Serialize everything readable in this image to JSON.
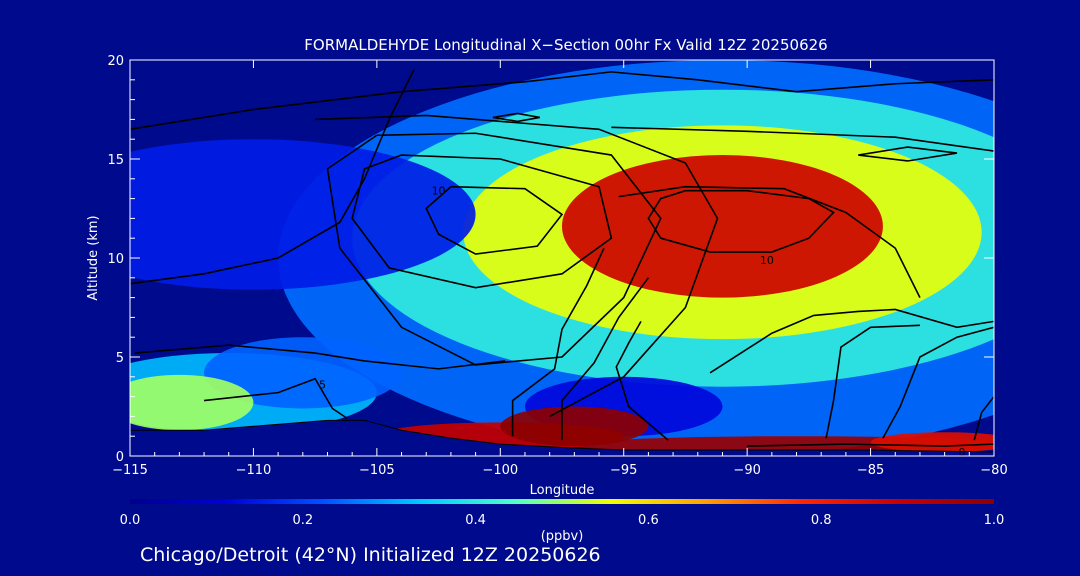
{
  "chart_data": {
    "type": "heatmap",
    "title": "FORMALDEHYDE Longitudinal X−Section 00hr  Fx Valid 12Z 20250626",
    "xlabel": "Longitude",
    "ylabel": "Altitude (km)",
    "xlim": [
      -115,
      -80
    ],
    "ylim": [
      0,
      20
    ],
    "x_ticks": [
      -115,
      -110,
      -105,
      -100,
      -95,
      -90,
      -85,
      -80
    ],
    "x_tick_labels": [
      "−115",
      "−110",
      "−105",
      "−100",
      "−95",
      "−90",
      "−85",
      "−80"
    ],
    "y_ticks": [
      0,
      5,
      10,
      15,
      20
    ],
    "y_tick_labels": [
      "0",
      "5",
      "10",
      "15",
      "20"
    ],
    "colorbar": {
      "label": "(ppbv)",
      "min": 0.0,
      "max": 1.0,
      "ticks": [
        0.0,
        0.2,
        0.4,
        0.6,
        0.8,
        1.0
      ],
      "tick_labels": [
        "0.0",
        "0.2",
        "0.4",
        "0.6",
        "0.8",
        "1.0"
      ],
      "colors": [
        "#00008c",
        "#0000d8",
        "#0050ff",
        "#00c8ff",
        "#50ffc8",
        "#f0ff00",
        "#ffa000",
        "#ff2800",
        "#c80000",
        "#8c0000"
      ]
    },
    "terrain_km": [
      [
        -115,
        1.3
      ],
      [
        -112,
        1.3
      ],
      [
        -110,
        1.5
      ],
      [
        -107,
        1.8
      ],
      [
        -105.5,
        1.8
      ],
      [
        -104,
        1.3
      ],
      [
        -102,
        0.9
      ],
      [
        -100,
        0.6
      ],
      [
        -97,
        0.4
      ],
      [
        -95,
        0.3
      ],
      [
        -90,
        0.3
      ],
      [
        -85,
        0.3
      ],
      [
        -80,
        0.2
      ]
    ],
    "concentration_blobs": [
      {
        "lon": -91,
        "alt": 11.6,
        "rx_deg": 6.5,
        "ry_km": 3.6,
        "ppbv": 0.88
      },
      {
        "lon": -91,
        "alt": 11.3,
        "rx_deg": 10.5,
        "ry_km": 5.4,
        "ppbv": 0.55
      },
      {
        "lon": -91,
        "alt": 11.0,
        "rx_deg": 15.0,
        "ry_km": 7.5,
        "ppbv": 0.4
      },
      {
        "lon": -91,
        "alt": 10.0,
        "rx_deg": 18.0,
        "ry_km": 10.0,
        "ppbv": 0.25
      },
      {
        "lon": -97,
        "alt": 1.5,
        "rx_deg": 3.0,
        "ry_km": 1.0,
        "ppbv": 1.0
      },
      {
        "lon": -100,
        "alt": 1.0,
        "rx_deg": 5.0,
        "ry_km": 0.7,
        "ppbv": 0.9
      },
      {
        "lon": -88,
        "alt": 0.55,
        "rx_deg": 9.0,
        "ry_km": 0.45,
        "ppbv": 0.98
      },
      {
        "lon": -82,
        "alt": 0.7,
        "rx_deg": 3.0,
        "ry_km": 0.5,
        "ppbv": 0.85
      },
      {
        "lon": -113,
        "alt": 2.7,
        "rx_deg": 3.0,
        "ry_km": 1.4,
        "ppbv": 0.5
      },
      {
        "lon": -111,
        "alt": 3.2,
        "rx_deg": 6.0,
        "ry_km": 2.0,
        "ppbv": 0.32
      },
      {
        "lon": -108,
        "alt": 4.2,
        "rx_deg": 4.0,
        "ry_km": 1.8,
        "ppbv": 0.24
      },
      {
        "lon": -110,
        "alt": 12.2,
        "rx_deg": 9.0,
        "ry_km": 3.8,
        "ppbv": 0.15
      },
      {
        "lon": -95,
        "alt": 2.5,
        "rx_deg": 4.0,
        "ry_km": 1.5,
        "ppbv": 0.12
      }
    ],
    "contours": [
      {
        "label": "10",
        "label_at": [
          -89.2,
          9.9
        ],
        "points": [
          [
            -92.5,
            13.4
          ],
          [
            -90,
            13.4
          ],
          [
            -87.5,
            13.0
          ],
          [
            -86.5,
            12.3
          ],
          [
            -87.5,
            11.0
          ],
          [
            -89,
            10.3
          ],
          [
            -91.5,
            10.3
          ],
          [
            -93.5,
            11.0
          ],
          [
            -94,
            12.0
          ],
          [
            -93.5,
            13.0
          ],
          [
            -92.5,
            13.4
          ]
        ]
      },
      {
        "label": "10",
        "label_at": [
          -102.5,
          13.4
        ],
        "points": [
          [
            -102,
            13.6
          ],
          [
            -99,
            13.5
          ],
          [
            -97.5,
            12.2
          ],
          [
            -98.5,
            10.6
          ],
          [
            -101,
            10.2
          ],
          [
            -102.5,
            11.2
          ],
          [
            -103,
            12.5
          ],
          [
            -102,
            13.6
          ]
        ]
      },
      {
        "label": "",
        "points": [
          [
            -104,
            15.2
          ],
          [
            -100,
            15.0
          ],
          [
            -96,
            13.6
          ],
          [
            -95.5,
            11.0
          ],
          [
            -97.5,
            9.2
          ],
          [
            -101,
            8.5
          ],
          [
            -104.5,
            9.5
          ],
          [
            -106,
            12.0
          ],
          [
            -105.5,
            14.5
          ],
          [
            -104,
            15.2
          ]
        ]
      },
      {
        "label": "",
        "points": [
          [
            -105,
            16.2
          ],
          [
            -101,
            16.3
          ],
          [
            -95.5,
            15.2
          ],
          [
            -93.5,
            12.0
          ],
          [
            -95,
            8.0
          ],
          [
            -97.5,
            5.0
          ],
          [
            -101,
            4.6
          ],
          [
            -104,
            6.5
          ],
          [
            -106.5,
            10.5
          ],
          [
            -107,
            14.5
          ],
          [
            -105,
            16.2
          ]
        ]
      },
      {
        "label": "",
        "points": [
          [
            -107.5,
            17.0
          ],
          [
            -103,
            17.2
          ],
          [
            -96,
            16.5
          ],
          [
            -92.5,
            14.8
          ],
          [
            -91.2,
            12.0
          ],
          [
            -92.5,
            7.5
          ],
          [
            -95,
            4.0
          ],
          [
            -98,
            2.0
          ]
        ]
      },
      {
        "label": "5",
        "label_at": [
          -107.2,
          3.6
        ],
        "points": [
          [
            -114.8,
            5.2
          ],
          [
            -111,
            5.6
          ],
          [
            -107.5,
            5.2
          ],
          [
            -105.5,
            4.8
          ],
          [
            -102.5,
            4.4
          ],
          [
            -99.8,
            4.8
          ]
        ]
      },
      {
        "label": "",
        "points": [
          [
            -112,
            2.8
          ],
          [
            -109,
            3.2
          ],
          [
            -107.5,
            3.9
          ],
          [
            -106.8,
            2.4
          ],
          [
            -106.2,
            1.9
          ]
        ]
      },
      {
        "label": "",
        "points": [
          [
            -115,
            8.7
          ],
          [
            -112,
            9.2
          ],
          [
            -109,
            10.0
          ],
          [
            -106.5,
            11.8
          ],
          [
            -105.5,
            14.0
          ],
          [
            -104.5,
            17.0
          ],
          [
            -103.5,
            19.5
          ]
        ]
      },
      {
        "label": "",
        "points": [
          [
            -115,
            16.5
          ],
          [
            -110,
            17.5
          ],
          [
            -104,
            18.4
          ],
          [
            -99,
            18.9
          ],
          [
            -95.5,
            19.4
          ],
          [
            -92,
            19.0
          ],
          [
            -88,
            18.4
          ],
          [
            -84,
            18.8
          ],
          [
            -80,
            19.0
          ]
        ]
      },
      {
        "label": "",
        "points": [
          [
            -95.2,
            13.1
          ],
          [
            -92.5,
            13.6
          ],
          [
            -88.5,
            13.5
          ],
          [
            -86,
            12.3
          ],
          [
            -84,
            10.5
          ],
          [
            -83,
            8.0
          ]
        ]
      },
      {
        "label": "",
        "points": [
          [
            -85.5,
            15.2
          ],
          [
            -83.5,
            15.6
          ],
          [
            -81.5,
            15.3
          ],
          [
            -83.5,
            14.9
          ],
          [
            -85.5,
            15.2
          ]
        ]
      },
      {
        "label": "",
        "points": [
          [
            -95.5,
            16.6
          ],
          [
            -90,
            16.4
          ],
          [
            -84,
            16.1
          ],
          [
            -80,
            15.4
          ]
        ]
      },
      {
        "label": "",
        "points": [
          [
            -100.3,
            17.1
          ],
          [
            -99.3,
            17.3
          ],
          [
            -98.4,
            17.1
          ],
          [
            -99.3,
            16.9
          ],
          [
            -100.3,
            17.1
          ]
        ]
      },
      {
        "label": "",
        "points": [
          [
            -99.5,
            1.0
          ],
          [
            -99.5,
            2.8
          ],
          [
            -97.8,
            4.4
          ],
          [
            -97.5,
            6.4
          ],
          [
            -96.5,
            8.6
          ],
          [
            -95.8,
            10.5
          ]
        ]
      },
      {
        "label": "",
        "points": [
          [
            -97.5,
            0.8
          ],
          [
            -97.5,
            2.8
          ],
          [
            -96.2,
            4.7
          ],
          [
            -95.2,
            7.0
          ],
          [
            -94,
            9.0
          ]
        ]
      },
      {
        "label": "",
        "points": [
          [
            -93.2,
            0.8
          ],
          [
            -94.8,
            2.5
          ],
          [
            -95.3,
            4.5
          ],
          [
            -94.8,
            5.7
          ],
          [
            -94.3,
            6.8
          ]
        ]
      },
      {
        "label": "",
        "points": [
          [
            -91.5,
            4.2
          ],
          [
            -90,
            5.4
          ],
          [
            -89,
            6.2
          ],
          [
            -87.3,
            7.1
          ],
          [
            -85.5,
            7.3
          ],
          [
            -84,
            7.4
          ],
          [
            -81.5,
            6.5
          ],
          [
            -80,
            6.8
          ]
        ]
      },
      {
        "label": "",
        "points": [
          [
            -86.8,
            0.9
          ],
          [
            -86.5,
            2.8
          ],
          [
            -86.2,
            5.5
          ],
          [
            -85,
            6.5
          ],
          [
            -83,
            6.6
          ]
        ]
      },
      {
        "label": "",
        "points": [
          [
            -84.5,
            0.9
          ],
          [
            -83.8,
            2.5
          ],
          [
            -83.0,
            5.0
          ],
          [
            -81.5,
            6.0
          ],
          [
            -80,
            6.5
          ]
        ]
      },
      {
        "label": "",
        "points": [
          [
            -80.8,
            0.8
          ],
          [
            -80.5,
            2.2
          ],
          [
            -80,
            3.0
          ]
        ]
      },
      {
        "label": "0",
        "label_at": [
          -81.3,
          0.2
        ],
        "points": [
          [
            -90,
            0.5
          ],
          [
            -86,
            0.6
          ],
          [
            -82,
            0.5
          ],
          [
            -80,
            0.6
          ]
        ]
      }
    ]
  },
  "footer_text": "Chicago/Detroit (42°N) Initialized 12Z 20250626"
}
